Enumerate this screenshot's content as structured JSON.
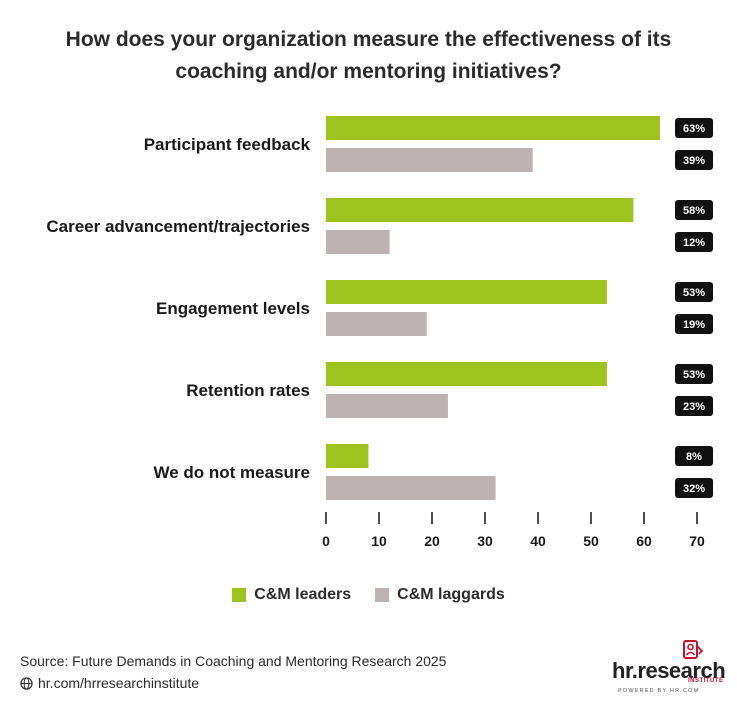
{
  "title_line1": "How does your organization measure the effectiveness of its",
  "title_line2": "coaching and/or mentoring initiatives?",
  "colors": {
    "leaders": "#9dc31e",
    "laggards": "#bdb3b3",
    "label_bg": "#111111"
  },
  "chart_data": {
    "type": "bar",
    "orientation": "horizontal",
    "categories": [
      "Participant feedback",
      "Career advancement/trajectories",
      "Engagement levels",
      "Retention rates",
      "We do not measure"
    ],
    "series": [
      {
        "name": "C&M leaders",
        "values": [
          63,
          58,
          53,
          53,
          8
        ],
        "labels": [
          "63%",
          "58%",
          "53%",
          "53%",
          "8%"
        ]
      },
      {
        "name": "C&M laggards",
        "values": [
          39,
          12,
          19,
          23,
          32
        ],
        "labels": [
          "39%",
          "12%",
          "19%",
          "23%",
          "32%"
        ]
      }
    ],
    "xlim": [
      0,
      70
    ],
    "xticks": [
      0,
      10,
      20,
      30,
      40,
      50,
      60,
      70
    ],
    "grid": false,
    "legend_position": "bottom"
  },
  "legend": {
    "leaders": "C&M leaders",
    "laggards": "C&M laggards"
  },
  "footer": {
    "source": "Source:  Future Demands in Coaching and Mentoring Research 2025",
    "url": "hr.com/hrresearchinstitute"
  },
  "logo": {
    "text": "hr.research",
    "sub": "INSTITUTE",
    "powered": "POWERED BY HR.COM",
    "icon": "document-person-icon",
    "globe_icon": "globe-icon"
  }
}
